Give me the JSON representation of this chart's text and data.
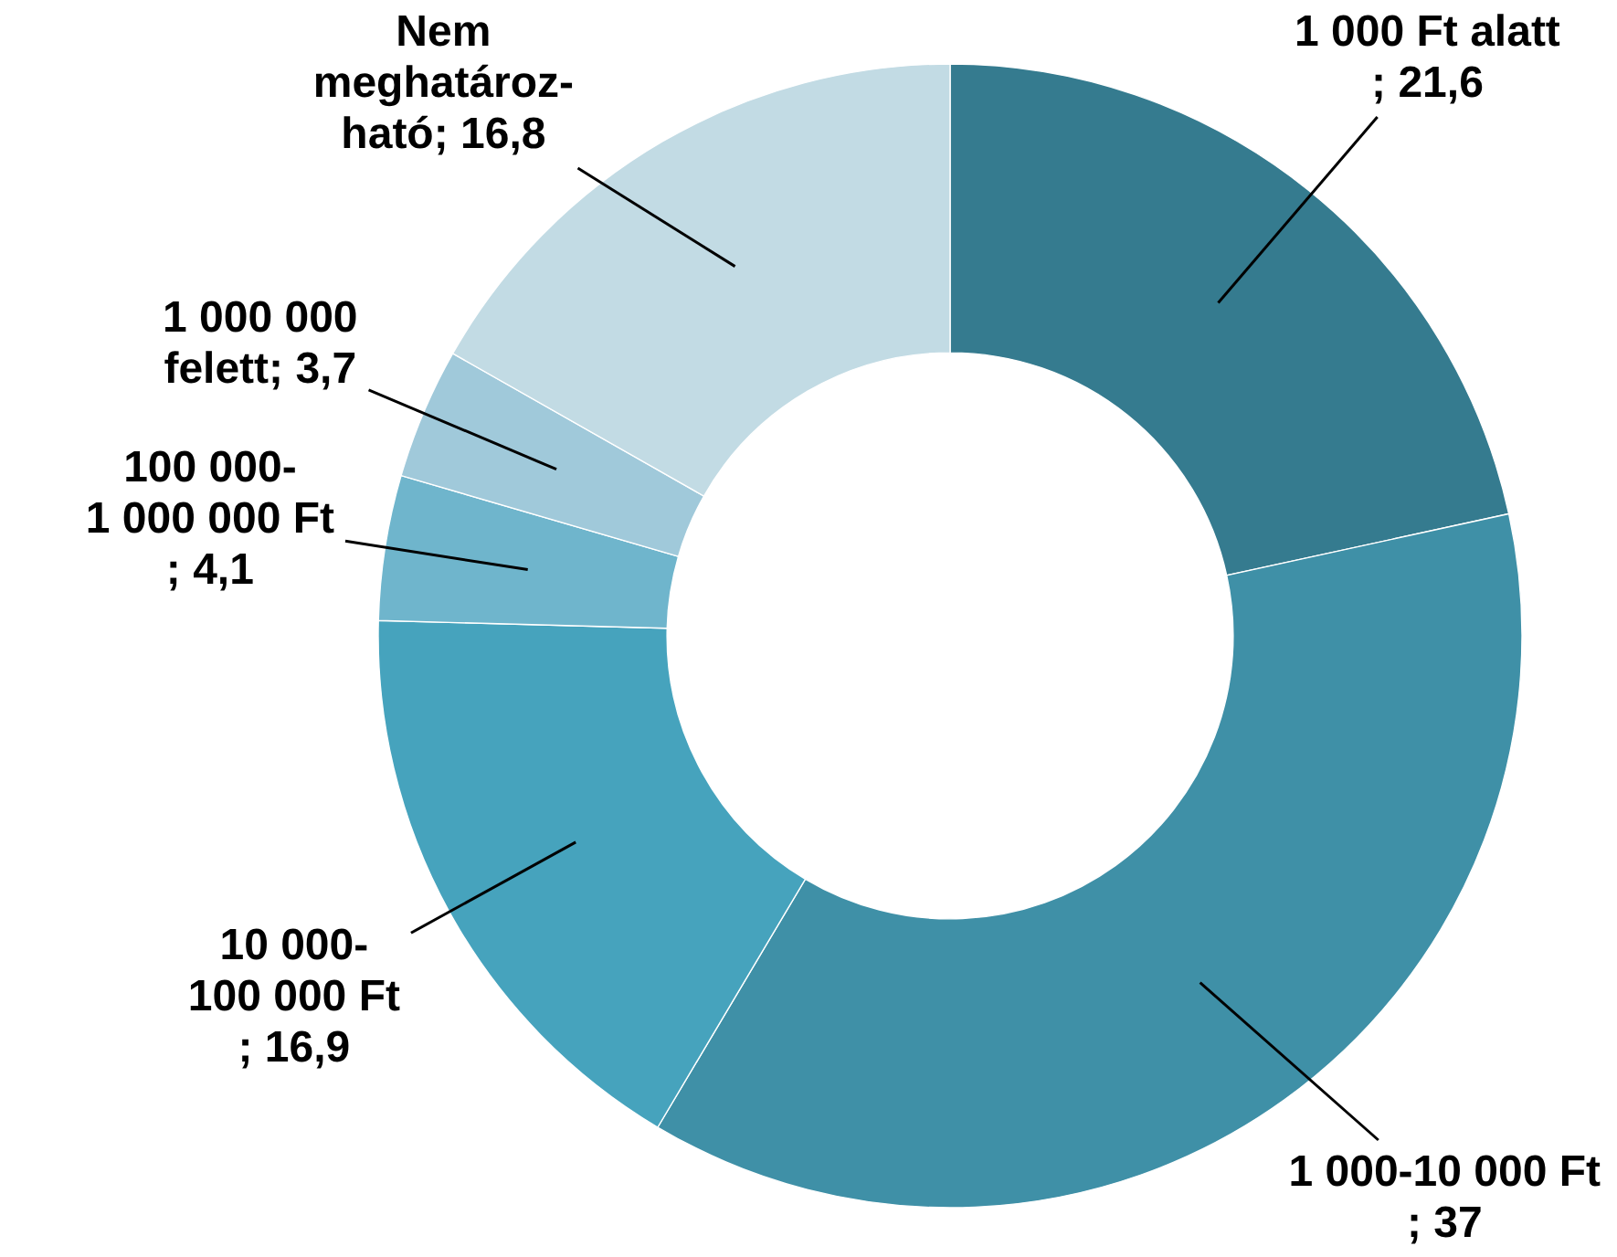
{
  "chart_data": {
    "type": "donut",
    "categories": [
      "1 000 Ft alatt",
      "1 000-10 000 Ft",
      "10 000-\n100 000 Ft",
      "100 000-\n1 000 000 Ft",
      "1 000 000\nfelett",
      "Nem\nmeghatároz-\nható"
    ],
    "values": [
      21.6,
      37,
      16.9,
      4.1,
      3.7,
      16.8
    ],
    "colors": [
      "#357b8f",
      "#3f90a7",
      "#46a3bd",
      "#6fb5cc",
      "#a0c9da",
      "#c2dbe4"
    ],
    "value_labels": [
      "; 21,6",
      "; 37",
      "; 16,9",
      "; 4,1",
      "; 3,7",
      "; 16,8"
    ]
  }
}
